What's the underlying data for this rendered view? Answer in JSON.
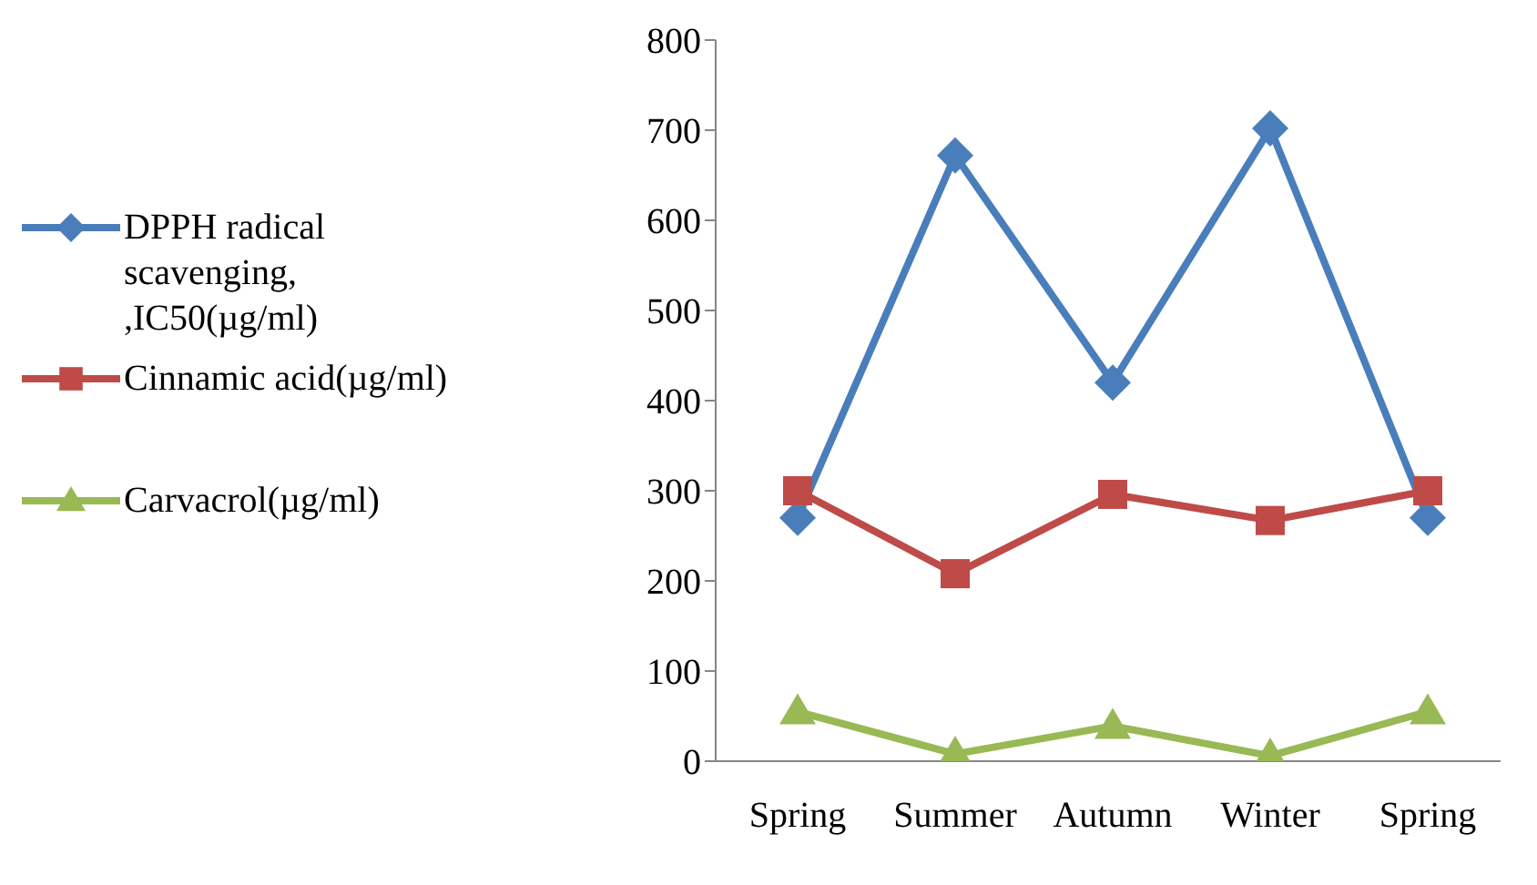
{
  "chart_data": {
    "type": "line",
    "categories": [
      "Spring",
      "Summer",
      "Autumn",
      "Winter",
      "Spring"
    ],
    "series": [
      {
        "name": "DPPH radical scavenging, ,IC50(µg/ml)",
        "color": "#4a7ebb",
        "marker": "diamond",
        "values": [
          270,
          672,
          420,
          702,
          270
        ]
      },
      {
        "name": "Cinnamic acid(µg/ml)",
        "color": "#be4b48",
        "marker": "square",
        "values": [
          300,
          208,
          296,
          267,
          300
        ]
      },
      {
        "name": "Carvacrol(µg/ml)",
        "color": "#98b954",
        "marker": "triangle",
        "values": [
          55,
          8,
          39,
          6,
          55
        ]
      }
    ],
    "ylim": [
      0,
      800
    ],
    "yticks": [
      0,
      100,
      200,
      300,
      400,
      500,
      600,
      700,
      800
    ],
    "grid": false,
    "legend": "left"
  }
}
